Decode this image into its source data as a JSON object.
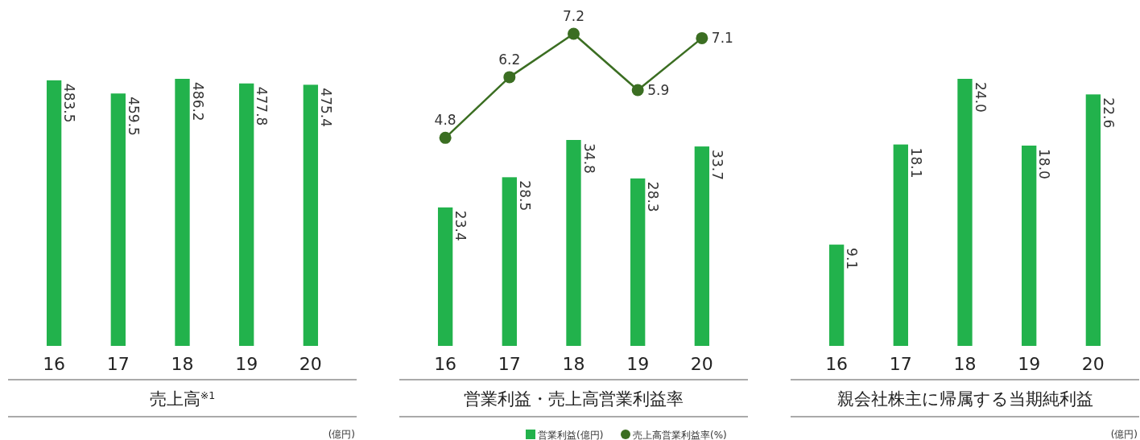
{
  "chart_data": [
    {
      "type": "bar",
      "title": "売上高$^{※1}$",
      "categories": [
        "16",
        "17",
        "18",
        "19",
        "20"
      ],
      "data_labels": true,
      "annotations": [
        "(億円)"
      ],
      "series": [
        {
          "values": [
            483.5,
            459.5,
            486.2,
            477.8,
            475.4
          ],
          "color": "#22b24c"
        }
      ]
    },
    {
      "type": "bar",
      "title": "営業利益・売上高営業利益率",
      "categories": [
        "16",
        "17",
        "18",
        "19",
        "20"
      ],
      "data_labels": true,
      "legend": "bottom right",
      "series": [
        {
          "name": "営業利益(億円)",
          "values": [
            23.4,
            28.5,
            34.8,
            28.3,
            33.7
          ],
          "color": "#22b24c"
        }
      ]
    },
    {
      "type": "line",
      "categories": [
        null,
        null,
        null,
        null,
        null
      ],
      "data_labels": true,
      "legend": "bottom right",
      "marker": "circle",
      "series": [
        {
          "name": "売上高営業利益率(%)",
          "values": [
            4.8,
            6.2,
            7.2,
            5.9,
            7.1
          ],
          "color": "#3b6e22"
        }
      ]
    },
    {
      "type": "bar",
      "title": "親会社株主に帰属する当期純利益",
      "categories": [
        "16",
        "17",
        "18",
        "19",
        "20"
      ],
      "data_labels": true,
      "annotations": [
        "(億円)"
      ],
      "series": [
        {
          "values": [
            9.1,
            18.1,
            24.0,
            18.0,
            22.6
          ],
          "value_labels": [
            "9.1",
            "18.1",
            "24.0",
            "18.0",
            "22.6"
          ],
          "color": "#22b24c"
        }
      ]
    }
  ]
}
